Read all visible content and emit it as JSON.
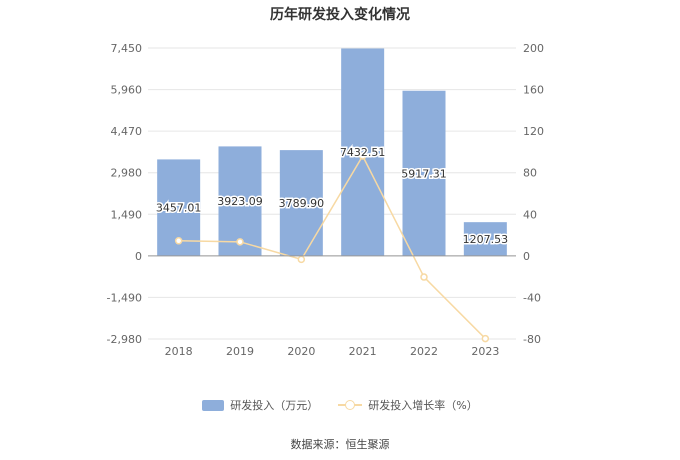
{
  "chart_data": {
    "type": "bar",
    "title": "历年研发投入变化情况",
    "categories": [
      "2018",
      "2019",
      "2020",
      "2021",
      "2022",
      "2023"
    ],
    "series": [
      {
        "name": "研发投入（万元）",
        "type": "bar",
        "axis": "left",
        "color": "#8eaedb",
        "values": [
          3457.01,
          3923.09,
          3789.9,
          7432.51,
          5917.31,
          1207.53
        ],
        "labels": [
          "3457.01",
          "3923.09",
          "3789.90",
          "7432.51",
          "5917.31",
          "1207.53"
        ]
      },
      {
        "name": "研发投入增长率（%）",
        "type": "line",
        "axis": "right",
        "color": "#f7d9a3",
        "values": [
          14.5,
          13.5,
          -3.4,
          96.1,
          -20.4,
          -79.6
        ]
      }
    ],
    "y_left": {
      "min": -2980,
      "max": 7450,
      "ticks": [
        "7,450",
        "5,960",
        "4,470",
        "2,980",
        "1,490",
        "0",
        "-1,490",
        "-2,980"
      ]
    },
    "y_right": {
      "min": -80,
      "max": 200,
      "ticks": [
        "200",
        "160",
        "120",
        "80",
        "40",
        "0",
        "-40",
        "-80"
      ]
    },
    "grid": true,
    "legend_position": "bottom"
  },
  "footer": {
    "source": "数据来源：恒生聚源"
  }
}
